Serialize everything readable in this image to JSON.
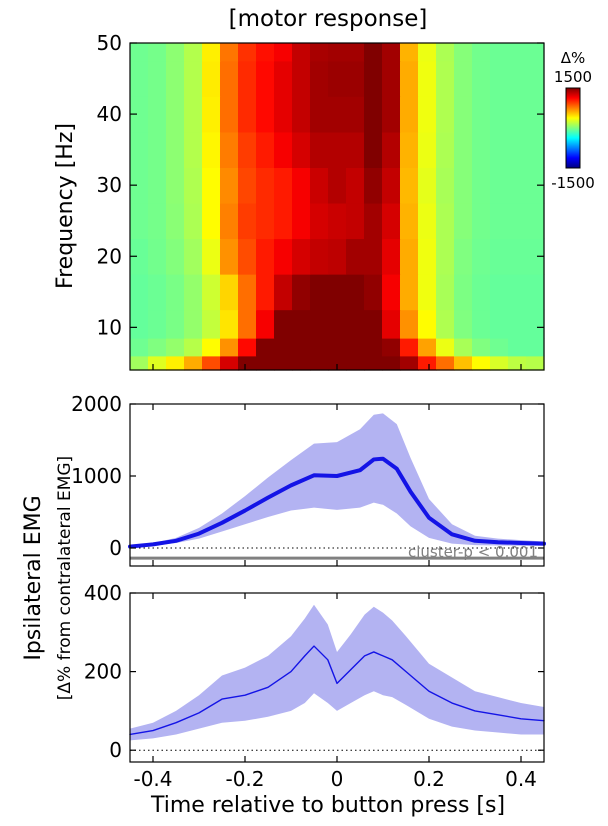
{
  "chart_data": [
    {
      "type": "heatmap",
      "title": "[motor response]",
      "ylabel": "Frequency [Hz]",
      "xlim": [
        -0.45,
        0.45
      ],
      "ylim": [
        4,
        50
      ],
      "yticks": [
        10,
        20,
        30,
        40,
        50
      ],
      "colorbar": {
        "label": "Δ%",
        "min": -1500,
        "max": 1500,
        "tick_labels": [
          "1500",
          "-1500"
        ],
        "colormap": "jet"
      },
      "x_bins": [
        -0.43,
        -0.39,
        -0.35,
        -0.31,
        -0.27,
        -0.23,
        -0.19,
        -0.15,
        -0.11,
        -0.07,
        -0.03,
        0.01,
        0.05,
        0.09,
        0.13,
        0.17,
        0.21,
        0.25,
        0.29,
        0.33,
        0.37,
        0.41,
        0.45
      ],
      "freq_bins": [
        5,
        7,
        10,
        15,
        20,
        25,
        30,
        35,
        40,
        45,
        50
      ],
      "values": [
        [
          100,
          280,
          420,
          620,
          900,
          1250,
          1500,
          1600,
          1700,
          1800,
          1850,
          1850,
          1850,
          1800,
          1650,
          1400,
          1050,
          800,
          560,
          380,
          260,
          180,
          160
        ],
        [
          -50,
          0,
          60,
          160,
          380,
          700,
          1100,
          1500,
          1650,
          1700,
          1800,
          1800,
          1800,
          1700,
          1450,
          1050,
          650,
          320,
          120,
          0,
          -50,
          -80,
          -80
        ],
        [
          -80,
          -60,
          -20,
          60,
          200,
          450,
          800,
          1150,
          1550,
          1650,
          1800,
          1800,
          1800,
          1550,
          1200,
          700,
          380,
          140,
          0,
          -60,
          -80,
          -80,
          -80
        ],
        [
          -80,
          -60,
          -20,
          60,
          230,
          500,
          800,
          1050,
          1300,
          1450,
          1600,
          1650,
          1700,
          1450,
          1150,
          620,
          330,
          120,
          -10,
          -60,
          -80,
          -80,
          -80
        ],
        [
          -70,
          -40,
          10,
          100,
          320,
          700,
          900,
          1050,
          1150,
          1250,
          1300,
          1320,
          1400,
          1400,
          1200,
          620,
          330,
          130,
          0,
          -50,
          -70,
          -70,
          -70
        ],
        [
          -50,
          -30,
          30,
          130,
          380,
          750,
          950,
          1000,
          1050,
          1150,
          1250,
          1280,
          1300,
          1400,
          1250,
          600,
          320,
          130,
          20,
          -40,
          -60,
          -60,
          -60
        ],
        [
          -50,
          -30,
          40,
          140,
          380,
          720,
          920,
          1000,
          1050,
          1150,
          1280,
          1350,
          1300,
          1450,
          1300,
          580,
          300,
          120,
          20,
          -40,
          -60,
          -60,
          -60
        ],
        [
          -50,
          -30,
          40,
          150,
          400,
          760,
          950,
          1050,
          1150,
          1250,
          1350,
          1350,
          1350,
          1500,
          1350,
          600,
          320,
          130,
          20,
          -40,
          -60,
          -60,
          -60
        ],
        [
          -50,
          -30,
          40,
          150,
          420,
          800,
          1000,
          1100,
          1200,
          1300,
          1400,
          1400,
          1400,
          1600,
          1400,
          620,
          330,
          140,
          20,
          -40,
          -60,
          -60,
          -60
        ],
        [
          -50,
          -30,
          40,
          150,
          430,
          800,
          1000,
          1100,
          1200,
          1300,
          1400,
          1420,
          1420,
          1650,
          1400,
          620,
          330,
          140,
          20,
          -40,
          -60,
          -60,
          -60
        ],
        [
          -50,
          -30,
          40,
          150,
          420,
          780,
          980,
          1080,
          1150,
          1300,
          1380,
          1400,
          1400,
          1650,
          1400,
          600,
          320,
          130,
          20,
          -40,
          -60,
          -60,
          -60
        ]
      ]
    },
    {
      "type": "area",
      "ylabel": "",
      "xlim": [
        -0.45,
        0.45
      ],
      "ylim": [
        -250,
        2000
      ],
      "yticks": [
        0,
        1000,
        2000
      ],
      "color": "#1414e6",
      "band_color": "#b3b3f2",
      "zero_line": true,
      "significance_bar": {
        "x_range": [
          -0.45,
          0.45
        ],
        "label": "cluster-p < 0.001",
        "color": "#808080"
      },
      "x": [
        -0.45,
        -0.4,
        -0.35,
        -0.3,
        -0.25,
        -0.2,
        -0.15,
        -0.1,
        -0.05,
        0.0,
        0.05,
        0.08,
        0.1,
        0.13,
        0.16,
        0.2,
        0.25,
        0.3,
        0.35,
        0.4,
        0.45
      ],
      "mean": [
        20,
        50,
        100,
        200,
        350,
        520,
        700,
        870,
        1010,
        1000,
        1080,
        1230,
        1240,
        1100,
        780,
        420,
        190,
        100,
        80,
        70,
        60
      ],
      "lower": [
        10,
        30,
        70,
        130,
        230,
        330,
        430,
        520,
        560,
        530,
        560,
        630,
        600,
        480,
        300,
        140,
        60,
        40,
        35,
        30,
        30
      ],
      "upper": [
        30,
        70,
        140,
        280,
        480,
        720,
        980,
        1220,
        1450,
        1470,
        1650,
        1850,
        1870,
        1720,
        1250,
        680,
        330,
        170,
        130,
        110,
        90
      ]
    },
    {
      "type": "area",
      "ylabel": "Ipsilateral EMG",
      "ylabel_sub": "[Δ% from contralateral EMG]",
      "xlabel": "Time relative to button press [s]",
      "xlim": [
        -0.45,
        0.45
      ],
      "ylim": [
        -30,
        400
      ],
      "yticks": [
        0,
        200,
        400
      ],
      "xticks": [
        -0.4,
        -0.2,
        0,
        0.2,
        0.4
      ],
      "xtick_labels": [
        "-0.4",
        "-0.2",
        "0",
        "0.2",
        "0.4"
      ],
      "color": "#1414e6",
      "band_color": "#b3b3f2",
      "zero_line": true,
      "x": [
        -0.45,
        -0.4,
        -0.35,
        -0.3,
        -0.25,
        -0.2,
        -0.15,
        -0.1,
        -0.07,
        -0.05,
        -0.02,
        0.0,
        0.03,
        0.06,
        0.08,
        0.1,
        0.12,
        0.15,
        0.2,
        0.25,
        0.3,
        0.35,
        0.4,
        0.45
      ],
      "mean": [
        40,
        50,
        70,
        95,
        130,
        140,
        160,
        200,
        240,
        265,
        230,
        170,
        205,
        240,
        250,
        240,
        230,
        200,
        150,
        120,
        100,
        90,
        80,
        75
      ],
      "lower": [
        25,
        30,
        40,
        55,
        70,
        75,
        85,
        100,
        120,
        145,
        120,
        100,
        120,
        140,
        150,
        140,
        135,
        115,
        80,
        60,
        50,
        45,
        40,
        40
      ],
      "upper": [
        55,
        70,
        100,
        140,
        190,
        210,
        240,
        290,
        335,
        370,
        320,
        250,
        295,
        345,
        365,
        350,
        330,
        290,
        220,
        185,
        150,
        135,
        120,
        110
      ]
    }
  ]
}
